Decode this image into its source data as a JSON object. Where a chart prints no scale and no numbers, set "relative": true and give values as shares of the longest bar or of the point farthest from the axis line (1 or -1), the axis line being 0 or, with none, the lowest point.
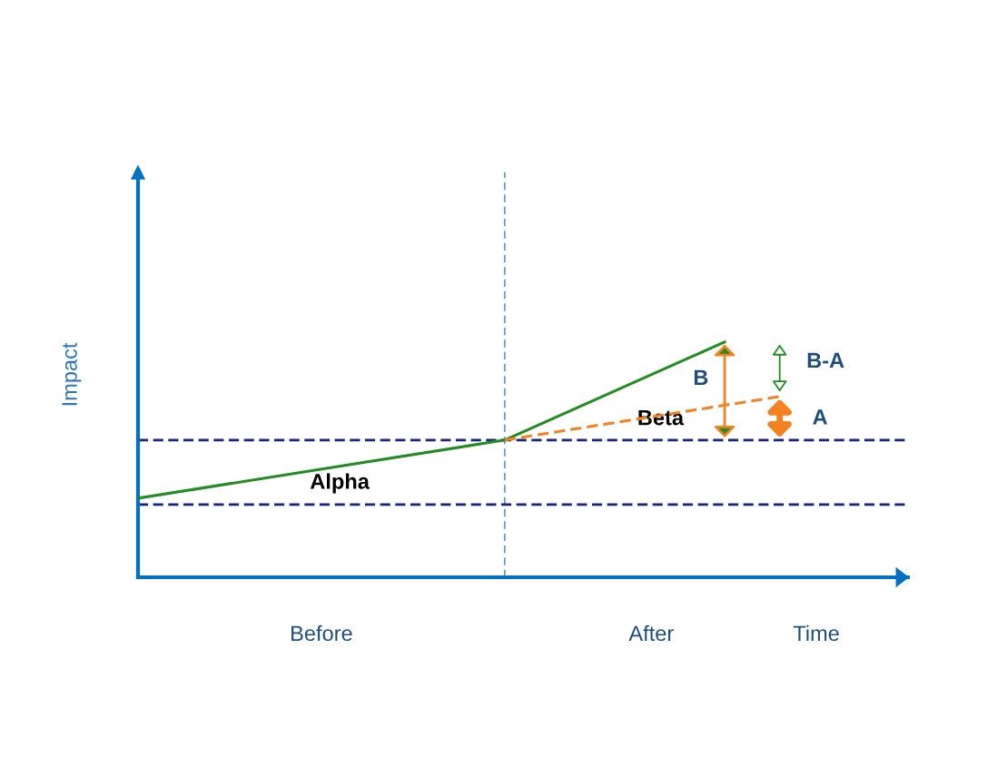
{
  "chart_data": {
    "type": "line",
    "relative": true,
    "ylabel": "Impact",
    "categories": [
      null,
      null,
      null,
      null,
      null,
      null,
      null,
      null,
      null,
      null,
      "Before",
      null,
      null,
      null,
      null,
      null,
      null,
      null,
      null,
      null,
      null,
      null,
      null,
      null,
      null,
      null,
      null,
      null,
      "After",
      null,
      null,
      null,
      null,
      null,
      null,
      null,
      null,
      "Time",
      null,
      null,
      null,
      null
    ],
    "series": [
      {
        "color": "#228b22",
        "line_style": "solid",
        "values": [
          0.336,
          null,
          null,
          null,
          null,
          null,
          null,
          null,
          null,
          null,
          null,
          null,
          null,
          null,
          null,
          null,
          null,
          null,
          null,
          null,
          0.583,
          null,
          null,
          null,
          null,
          null,
          null,
          null,
          null,
          null,
          null,
          null,
          1,
          null,
          null,
          null,
          null,
          null,
          null,
          null,
          null,
          null
        ]
      },
      {
        "color": "#f58220",
        "line_style": "dashed",
        "values": [
          null,
          null,
          null,
          null,
          null,
          null,
          null,
          null,
          null,
          null,
          null,
          null,
          null,
          null,
          null,
          null,
          null,
          null,
          null,
          null,
          0.583,
          null,
          null,
          null,
          null,
          null,
          null,
          null,
          null,
          null,
          null,
          null,
          null,
          null,
          null,
          0.768,
          null,
          null,
          null,
          null,
          null,
          null
        ]
      }
    ],
    "ref_lines": [
      {
        "axis": "y",
        "value": 0.583,
        "color": "#1a237e",
        "line_style": "dashed"
      },
      {
        "axis": "y",
        "value": 0.309,
        "color": "#1a237e",
        "line_style": "dashed"
      }
    ],
    "annotations": [
      "Alpha",
      "Beta",
      "B",
      "A",
      "B-A"
    ],
    "grid": false,
    "legend": false,
    "marker": "none"
  }
}
